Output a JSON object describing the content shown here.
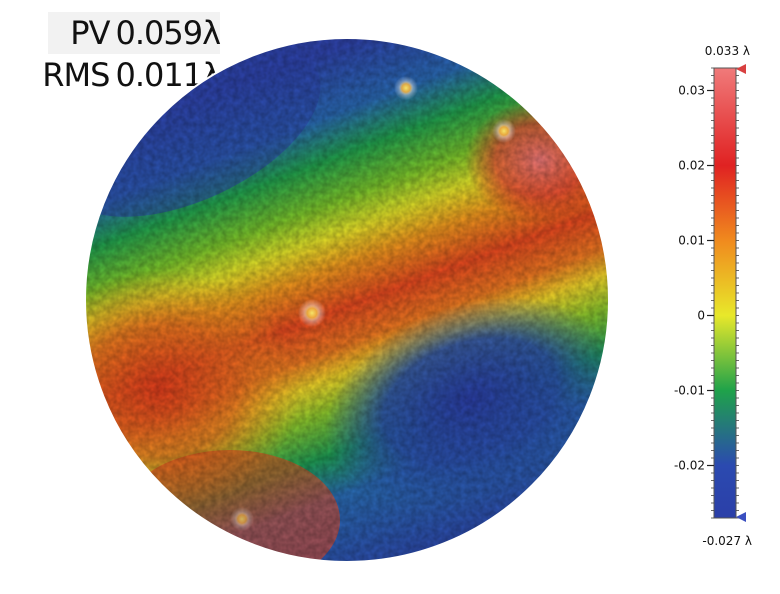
{
  "stats": {
    "pv_label": "PV",
    "pv_value": "0.059λ",
    "rms_label": "RMS",
    "rms_value": "0.011λ"
  },
  "chart_data": {
    "type": "heatmap",
    "title": "",
    "shape": "circular aperture",
    "colormap": [
      {
        "value": -0.027,
        "color": "#2b3fa8"
      },
      {
        "value": -0.02,
        "color": "#2b4ab0"
      },
      {
        "value": -0.01,
        "color": "#1fa24a"
      },
      {
        "value": 0.0,
        "color": "#e8e82a"
      },
      {
        "value": 0.01,
        "color": "#f08a1e"
      },
      {
        "value": 0.02,
        "color": "#e02222"
      },
      {
        "value": 0.033,
        "color": "#f07a7a"
      }
    ],
    "colorbar": {
      "max_label": "0.033 λ",
      "min_label": "-0.027 λ",
      "max": 0.033,
      "min": -0.027,
      "ticks": [
        0.03,
        0.02,
        0.01,
        0,
        -0.01,
        -0.02
      ],
      "tick_labels": [
        "0.03",
        "0.02",
        "0.01",
        "0",
        "-0.01",
        "-0.02"
      ],
      "max_marker_color": "#d84040",
      "min_marker_color": "#3a4fc0"
    },
    "pattern": "diagonal bands: blue upper-left and lower-right, red/orange central band rising to upper-right, red lower-left"
  }
}
